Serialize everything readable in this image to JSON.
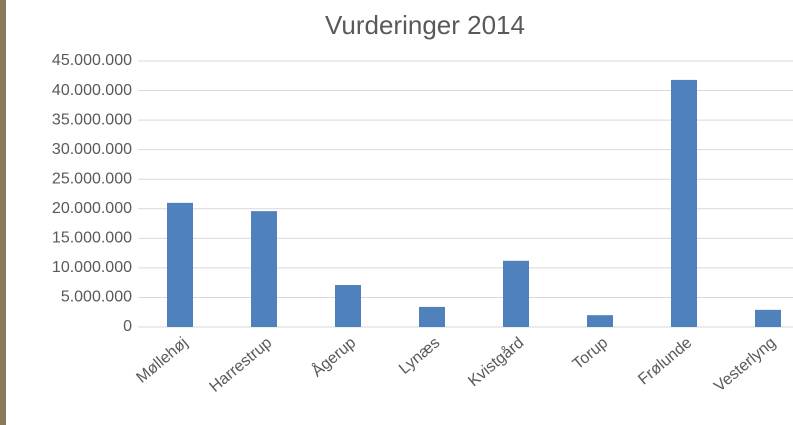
{
  "chart_data": {
    "type": "bar",
    "title": "Vurderinger 2014",
    "categories": [
      "Møllehøj",
      "Harrestrup",
      "Ågerup",
      "Lynæs",
      "Kvistgård",
      "Torup",
      "Frølunde",
      "Vesterlyng"
    ],
    "values": [
      21000000,
      19600000,
      7100000,
      3400000,
      11200000,
      2000000,
      41800000,
      2900000
    ],
    "color": "#4f81bd",
    "ylim": [
      0,
      45000000
    ],
    "yticks": [
      0,
      {
        "value": 5000000,
        "label": "5.000.000"
      },
      {
        "value": 10000000,
        "label": "10.000.000"
      },
      {
        "value": 15000000,
        "label": "15.000.000"
      },
      {
        "value": 20000000,
        "label": "20.000.000"
      },
      {
        "value": 25000000,
        "label": "25.000.000"
      },
      {
        "value": 30000000,
        "label": "30.000.000"
      },
      {
        "value": 35000000,
        "label": "35.000.000"
      },
      {
        "value": 40000000,
        "label": "40.000.000"
      },
      {
        "value": 45000000,
        "label": "45.000.000"
      }
    ],
    "grid": true
  }
}
